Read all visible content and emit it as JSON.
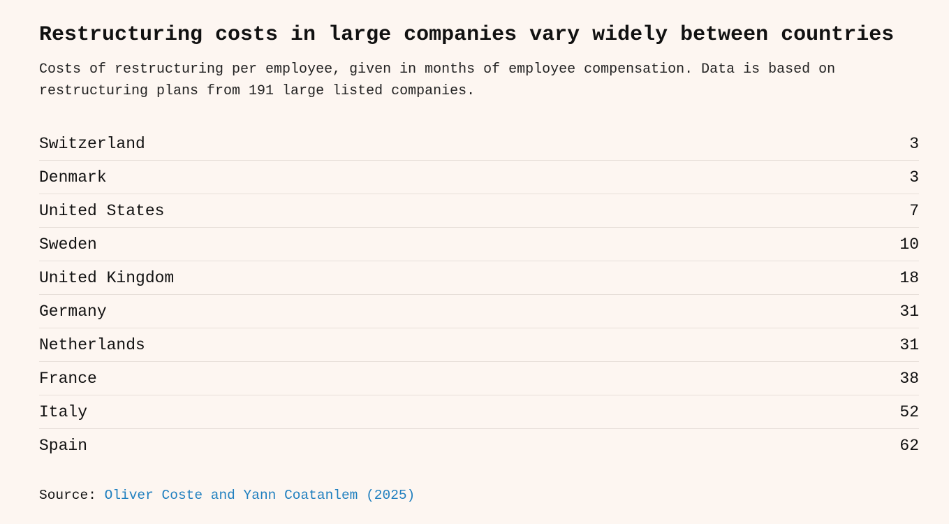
{
  "header": {
    "title": "Restructuring costs in large companies vary widely between countries",
    "subtitle": "Costs of restructuring per employee, given in months of employee compensation. Data is based on restructuring plans from 191 large listed companies."
  },
  "table": {
    "rows": [
      [
        "Switzerland",
        3
      ],
      [
        "Denmark",
        3
      ],
      [
        "United States",
        7
      ],
      [
        "Sweden",
        10
      ],
      [
        "United Kingdom",
        18
      ],
      [
        "Germany",
        31
      ],
      [
        "Netherlands",
        31
      ],
      [
        "France",
        38
      ],
      [
        "Italy",
        52
      ],
      [
        "Spain",
        62
      ]
    ]
  },
  "source": {
    "label": "Source:",
    "link": "Oliver Coste and Yann Coatanlem (2025)"
  }
}
